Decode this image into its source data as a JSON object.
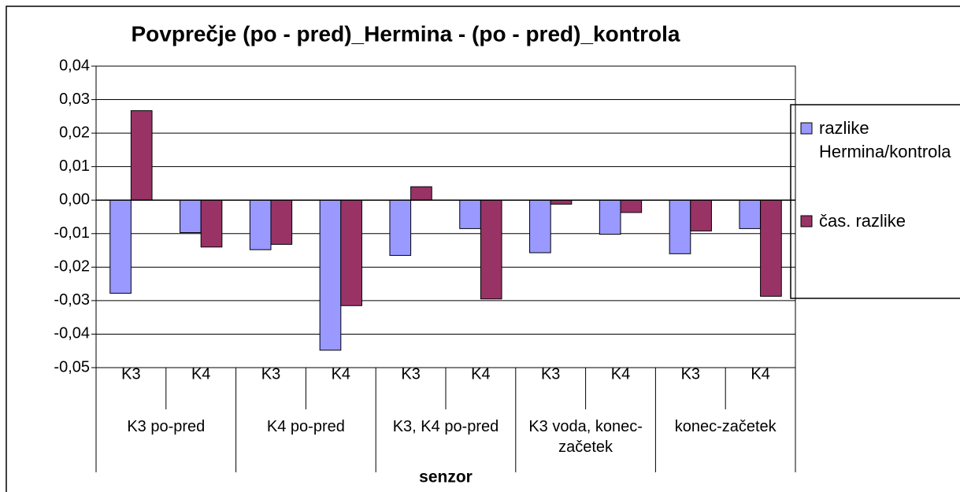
{
  "chart_data": {
    "type": "bar",
    "title": "Povprečje (po - pred)_Hermina - (po - pred)_kontrola",
    "x_label": "senzor",
    "categories": [
      "K3",
      "K4",
      "K3",
      "K4",
      "K3",
      "K4",
      "K3",
      "K4",
      "K3",
      "K4"
    ],
    "groups": [
      "K3 po-pred",
      "K4 po-pred",
      "K3, K4 po-pred",
      "K3 voda, konec-začetek",
      "konec-začetek"
    ],
    "series": [
      {
        "name": "razlike Hermina/kontrola",
        "color": "#9999ff",
        "values": [
          -0.0278,
          -0.0097,
          -0.0148,
          -0.0448,
          -0.0165,
          -0.0085,
          -0.0157,
          -0.0102,
          -0.016,
          -0.0085
        ]
      },
      {
        "name": "čas. razlike",
        "color": "#993366",
        "values": [
          0.0267,
          -0.014,
          -0.0132,
          -0.0315,
          0.004,
          -0.0295,
          -0.0012,
          -0.0037,
          -0.0092,
          -0.0287
        ]
      }
    ],
    "ylim": [
      -0.05,
      0.04
    ],
    "yticks": [
      {
        "value": -0.05,
        "label": "-0,05"
      },
      {
        "value": -0.04,
        "label": "-0,04"
      },
      {
        "value": -0.03,
        "label": "-0,03"
      },
      {
        "value": -0.02,
        "label": "-0,02"
      },
      {
        "value": -0.01,
        "label": "-0,01"
      },
      {
        "value": 0,
        "label": "0,00"
      },
      {
        "value": 0.01,
        "label": "0,01"
      },
      {
        "value": 0.02,
        "label": "0,02"
      },
      {
        "value": 0.03,
        "label": "0,03"
      },
      {
        "value": 0.04,
        "label": "0,04"
      }
    ],
    "grid": true,
    "legend": "right"
  }
}
